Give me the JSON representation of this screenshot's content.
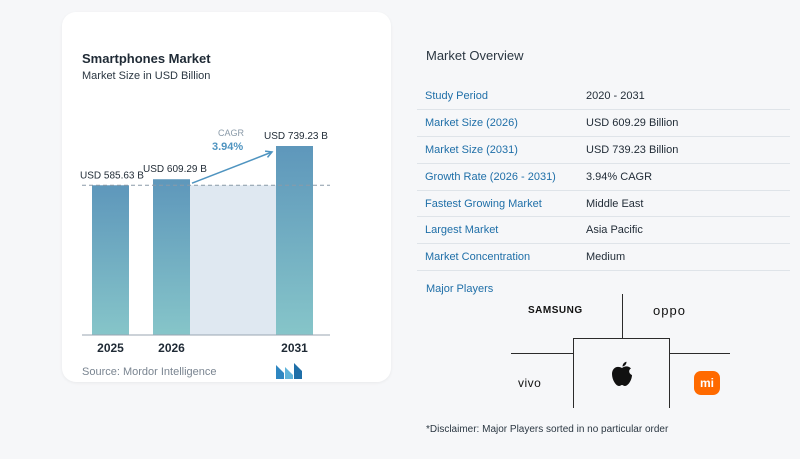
{
  "card": {
    "title": "Smartphones Market",
    "subtitle": "Market Size in USD Billion",
    "source": "Source: Mordor Intelligence",
    "logo_icon": "mordor-intelligence-logo",
    "colors": {
      "bar_top": "#5e97bb",
      "bar_bottom": "#86c5c9",
      "cagr_band": "#dfe8f1",
      "arrow": "#4f94c0",
      "cagr_text": "#4f94c0"
    }
  },
  "chart_data": {
    "type": "bar",
    "categories": [
      "2025",
      "2026",
      "2031"
    ],
    "values": [
      585.63,
      609.29,
      739.23
    ],
    "value_labels": [
      "USD 585.63 B",
      "USD 609.29 B",
      "USD 739.23 B"
    ],
    "title": "Smartphones Market",
    "subtitle": "Market Size in USD Billion",
    "xlabel": "",
    "ylabel": "",
    "ylim": [
      0,
      739.23
    ],
    "grid": false,
    "annotation": {
      "label": "CAGR",
      "value": "3.94%"
    },
    "reference_line_value": 585.63
  },
  "overview": {
    "title": "Market Overview",
    "rows": [
      {
        "key": "Study Period",
        "value": "2020 - 2031"
      },
      {
        "key": "Market Size (2026)",
        "value": "USD 609.29 Billion"
      },
      {
        "key": "Market Size (2031)",
        "value": "USD 739.23 Billion"
      },
      {
        "key": "Growth Rate (2026 - 2031)",
        "value": "3.94% CAGR"
      },
      {
        "key": "Fastest Growing Market",
        "value": "Middle East"
      },
      {
        "key": "Largest Market",
        "value": "Asia Pacific"
      },
      {
        "key": "Market Concentration",
        "value": "Medium"
      }
    ]
  },
  "players": {
    "title": "Major Players",
    "samsung": "SAMSUNG",
    "oppo": "oppo",
    "vivo": "vivo",
    "apple_icon": "apple-logo-icon",
    "xiaomi_icon": "xiaomi-logo-icon",
    "xiaomi_mark": "mi"
  },
  "disclaimer": "*Disclaimer: Major Players sorted in no particular order"
}
